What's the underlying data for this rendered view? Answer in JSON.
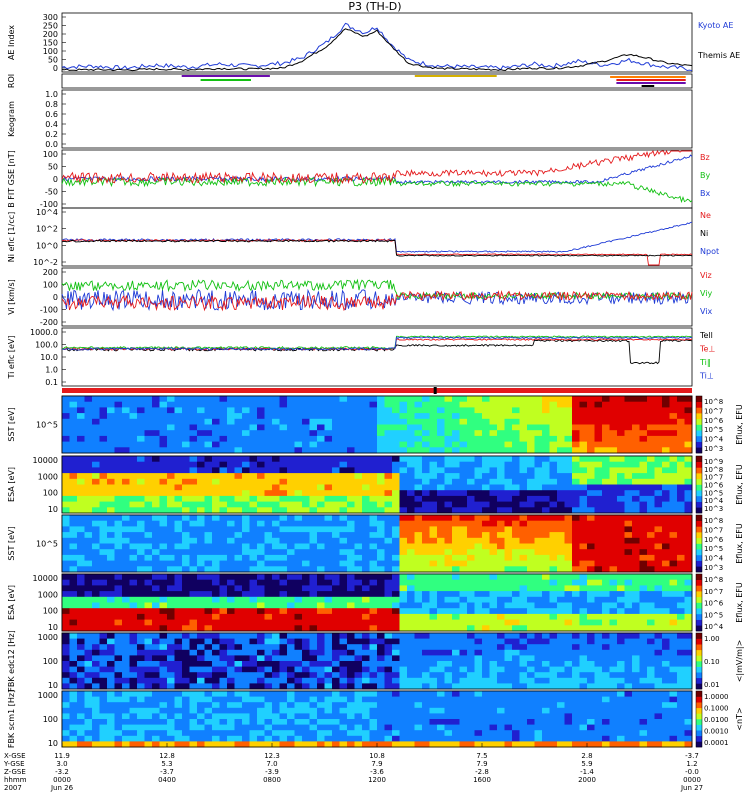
{
  "title": "P3 (TH-D)",
  "colors": {
    "red": "#e41a1c",
    "green": "#12c012",
    "blue": "#1f3bd6",
    "black": "#000000",
    "orange": "#ff7f00",
    "purple": "#6a0dad",
    "yellow": "#d4b000"
  },
  "chart_data": [
    {
      "type": "line",
      "id": "ae",
      "ylabel": "AE Index",
      "ylim": [
        0,
        300
      ],
      "yticks": [
        "300",
        "250",
        "200",
        "150",
        "100",
        "50",
        "0"
      ],
      "series": [
        {
          "name": "Kyoto AE",
          "color": "#1f3bd6",
          "x": [
            0,
            0.05,
            0.1,
            0.15,
            0.2,
            0.25,
            0.3,
            0.35,
            0.38,
            0.42,
            0.45,
            0.48,
            0.5,
            0.52,
            0.55,
            0.58,
            0.6,
            0.65,
            0.7,
            0.75,
            0.78,
            0.82,
            0.86,
            0.9,
            0.93,
            0.96,
            1
          ],
          "y": [
            25,
            30,
            20,
            35,
            25,
            40,
            30,
            45,
            70,
            150,
            240,
            200,
            230,
            150,
            60,
            40,
            30,
            25,
            20,
            40,
            30,
            55,
            35,
            60,
            40,
            25,
            15
          ]
        },
        {
          "name": "Themis AE",
          "color": "#000000",
          "x": [
            0,
            0.05,
            0.1,
            0.15,
            0.2,
            0.25,
            0.3,
            0.35,
            0.38,
            0.42,
            0.45,
            0.48,
            0.5,
            0.52,
            0.55,
            0.58,
            0.6,
            0.65,
            0.7,
            0.75,
            0.78,
            0.82,
            0.86,
            0.9,
            0.93,
            0.96,
            1
          ],
          "y": [
            10,
            12,
            10,
            15,
            12,
            18,
            15,
            20,
            55,
            130,
            220,
            180,
            210,
            140,
            45,
            25,
            18,
            15,
            12,
            20,
            18,
            30,
            55,
            90,
            70,
            45,
            30
          ]
        }
      ]
    },
    {
      "type": "bar",
      "id": "roi",
      "ylabel": "ROI",
      "segments": [
        {
          "from": 0.39,
          "to": 0.72,
          "color": "#000000"
        },
        {
          "from": 0.46,
          "to": 0.62,
          "color": "#12c012"
        },
        {
          "from": 2.55,
          "to": 2.93,
          "color": "#d4b000"
        },
        {
          "from": 2.93,
          "to": 3.06,
          "color": "#12c012"
        }
      ]
    },
    {
      "type": "line",
      "id": "keogram",
      "ylabel": "Keogram",
      "ylim": [
        0,
        1.0
      ],
      "yticks": [
        "1.0",
        "0.8",
        "0.6",
        "0.4",
        "0.2",
        "0.0"
      ]
    },
    {
      "type": "line",
      "id": "bfield",
      "ylabel": "B FIT GSE [nT]",
      "ylim": [
        -100,
        100
      ],
      "yticks": [
        "100",
        "50",
        "0",
        "-50",
        "-100"
      ],
      "series": [
        {
          "name": "Bz",
          "color": "#e41a1c"
        },
        {
          "name": "By",
          "color": "#12c012"
        },
        {
          "name": "Bx",
          "color": "#1f3bd6"
        }
      ]
    },
    {
      "type": "line",
      "id": "ni",
      "ylabel": "Ni eflc [1/cc]",
      "scale": "log",
      "yticks": [
        "10^4",
        "10^2",
        "10^0",
        "10^-2"
      ],
      "series": [
        {
          "name": "Ne",
          "color": "#e41a1c"
        },
        {
          "name": "Ni",
          "color": "#000000"
        },
        {
          "name": "Npot",
          "color": "#1f3bd6"
        }
      ]
    },
    {
      "type": "line",
      "id": "vi",
      "ylabel": "Vi [km/s]",
      "ylim": [
        -300,
        300
      ],
      "yticks": [
        "200",
        "100",
        "0",
        "-100",
        "-200"
      ],
      "series": [
        {
          "name": "Viz",
          "color": "#e41a1c"
        },
        {
          "name": "Viy",
          "color": "#12c012"
        },
        {
          "name": "Vix",
          "color": "#1f3bd6"
        }
      ]
    },
    {
      "type": "line",
      "id": "ti",
      "ylabel": "Ti eflc [eV]",
      "scale": "log",
      "yticks": [
        "1000.0",
        "100.0",
        "10.0",
        "1.0",
        "0.1"
      ],
      "series": [
        {
          "name": "Tell",
          "color": "#000000"
        },
        {
          "name": "Te⊥",
          "color": "#e41a1c"
        },
        {
          "name": "Ti‖",
          "color": "#12c012"
        },
        {
          "name": "Ti⊥",
          "color": "#1f3bd6"
        }
      ]
    },
    {
      "type": "heatmap",
      "id": "sst1",
      "ylabel": "SST [eV]",
      "yticks": [
        "10^5"
      ],
      "colorbar_label": "Eflux, EFU",
      "colorbar_ticks": [
        "10^8",
        "10^7",
        "10^6",
        "10^5",
        "10^4",
        "10^3"
      ]
    },
    {
      "type": "heatmap",
      "id": "esa1",
      "ylabel": "ESA [eV]",
      "yticks": [
        "10000",
        "1000",
        "100",
        "10"
      ],
      "colorbar_label": "Eflux, EFU",
      "colorbar_ticks": [
        "10^9",
        "10^8",
        "10^7",
        "10^6",
        "10^5",
        "10^4",
        "10^3"
      ]
    },
    {
      "type": "heatmap",
      "id": "sst2",
      "ylabel": "SST [eV]",
      "yticks": [
        "10^5"
      ],
      "colorbar_label": "Eflux, EFU",
      "colorbar_ticks": [
        "10^8",
        "10^7",
        "10^6",
        "10^5",
        "10^4",
        "10^3"
      ]
    },
    {
      "type": "heatmap",
      "id": "esa2",
      "ylabel": "ESA [eV]",
      "yticks": [
        "10000",
        "1000",
        "100",
        "10"
      ],
      "colorbar_label": "Eflux, EFU",
      "colorbar_ticks": [
        "10^8",
        "10^7",
        "10^6",
        "10^5",
        "10^4"
      ]
    },
    {
      "type": "heatmap",
      "id": "fbk1",
      "ylabel": "FBK edc12 [Hz]",
      "yticks": [
        "1000",
        "100",
        "10"
      ],
      "colorbar_label": "<|mV/m|>",
      "colorbar_ticks": [
        "1.00",
        "0.10",
        "0.01"
      ]
    },
    {
      "type": "heatmap",
      "id": "fbk2",
      "ylabel": "FBK scm1 [Hz]",
      "yticks": [
        "1000",
        "100",
        "10"
      ],
      "colorbar_label": "<nT>",
      "colorbar_ticks": [
        "1.0000",
        "0.1000",
        "0.0100",
        "0.0010",
        "0.0001"
      ]
    }
  ],
  "xaxis": {
    "row_labels": [
      "X-GSE",
      "Y-GSE",
      "Z-GSE",
      "hhmm",
      "2007"
    ],
    "ticks": [
      {
        "x": "11.9",
        "y": "3.0",
        "z": "-3.2",
        "time": "0000",
        "date": "Jun 26"
      },
      {
        "x": "12.8",
        "y": "5.3",
        "z": "-3.7",
        "time": "0400",
        "date": ""
      },
      {
        "x": "12.3",
        "y": "7.0",
        "z": "-3.9",
        "time": "0800",
        "date": ""
      },
      {
        "x": "10.8",
        "y": "7.9",
        "z": "-3.6",
        "time": "1200",
        "date": ""
      },
      {
        "x": "7.5",
        "y": "7.9",
        "z": "-2.8",
        "time": "1600",
        "date": ""
      },
      {
        "x": "2.8",
        "y": "5.9",
        "z": "-1.4",
        "time": "2000",
        "date": ""
      },
      {
        "x": "-3.7",
        "y": "1.2",
        "z": "-0.0",
        "time": "0000",
        "date": "Jun 27"
      }
    ]
  }
}
